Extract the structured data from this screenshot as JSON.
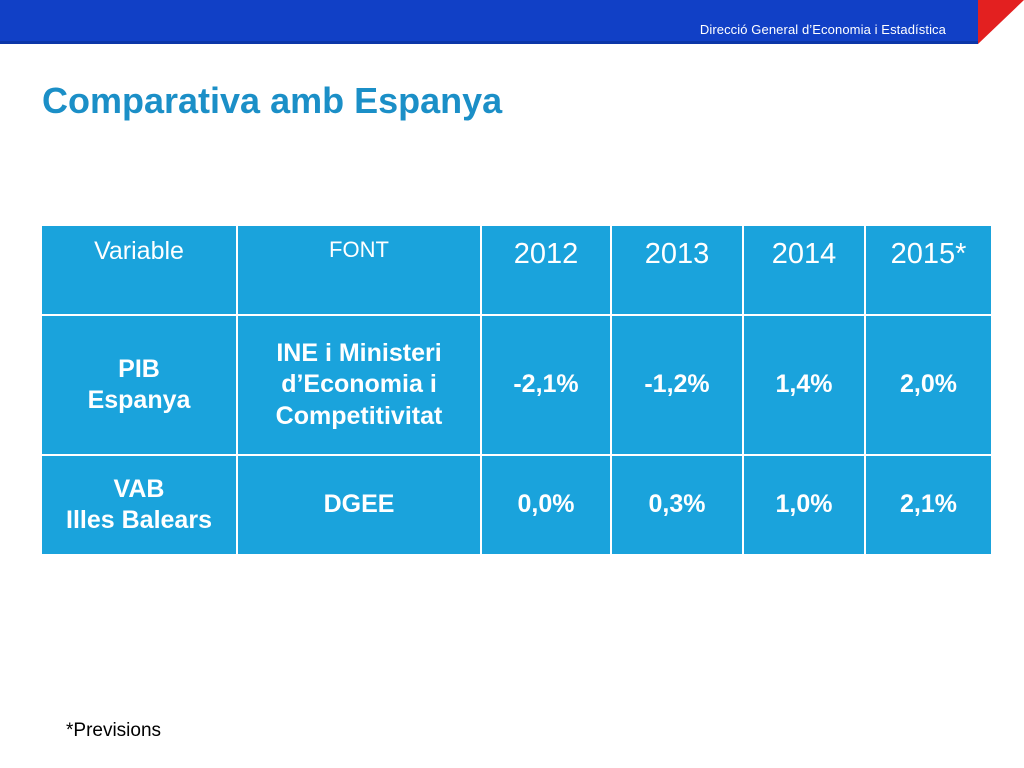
{
  "header": {
    "title": "Direcció General d’Economia i Estadística",
    "band_color": "#1140c6",
    "accent_color": "#e32020"
  },
  "page": {
    "title": "Comparativa amb Espanya",
    "title_color": "#1b8fc7"
  },
  "table": {
    "fill_color": "#1aa3dc",
    "headers": [
      "Variable",
      "FONT",
      "2012",
      "2013",
      "2014",
      "2015*"
    ],
    "rows": [
      {
        "variable_line1": "PIB",
        "variable_line2": "Espanya",
        "source_line1": "INE i Ministeri",
        "source_line2": "d’Economia i",
        "source_line3": "Competitivitat",
        "values": [
          "-2,1%",
          "-1,2%",
          "1,4%",
          "2,0%"
        ]
      },
      {
        "variable_line1": "VAB",
        "variable_line2": "Illes Balears",
        "source_line1": "DGEE",
        "values": [
          "0,0%",
          "0,3%",
          "1,0%",
          "2,1%"
        ]
      }
    ]
  },
  "footnote": "*Previsions"
}
